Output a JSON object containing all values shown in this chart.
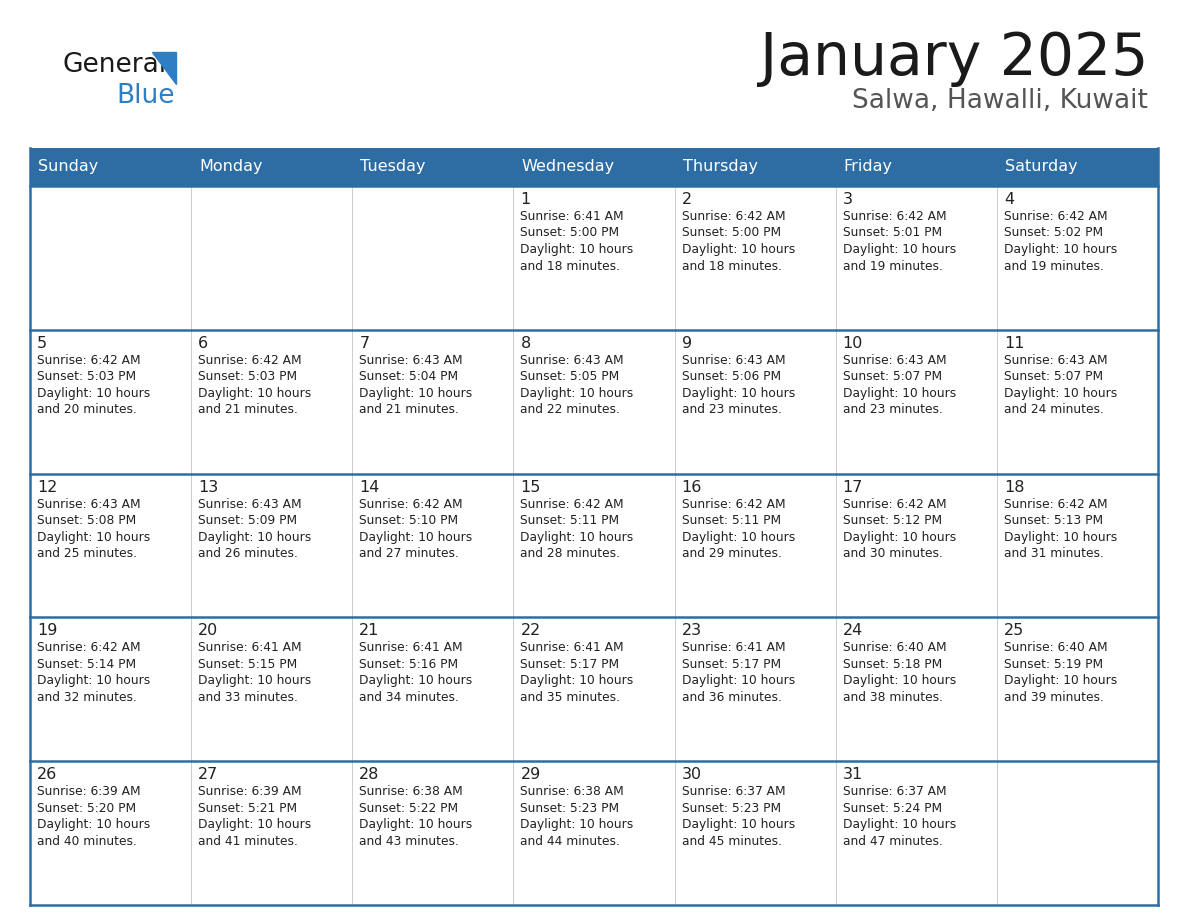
{
  "title": "January 2025",
  "subtitle": "Salwa, Hawalli, Kuwait",
  "header_color": "#2E6DA4",
  "header_text_color": "#FFFFFF",
  "cell_bg_color": "#FFFFFF",
  "cell_alt_bg_color": "#F2F2F2",
  "border_color": "#2E6DA4",
  "grid_color": "#CCCCCC",
  "days_of_week": [
    "Sunday",
    "Monday",
    "Tuesday",
    "Wednesday",
    "Thursday",
    "Friday",
    "Saturday"
  ],
  "weeks": [
    [
      {
        "day": "",
        "sunrise": "",
        "sunset": "",
        "daylight": ""
      },
      {
        "day": "",
        "sunrise": "",
        "sunset": "",
        "daylight": ""
      },
      {
        "day": "",
        "sunrise": "",
        "sunset": "",
        "daylight": ""
      },
      {
        "day": "1",
        "sunrise": "6:41 AM",
        "sunset": "5:00 PM",
        "daylight": "10 hours and 18 minutes."
      },
      {
        "day": "2",
        "sunrise": "6:42 AM",
        "sunset": "5:00 PM",
        "daylight": "10 hours and 18 minutes."
      },
      {
        "day": "3",
        "sunrise": "6:42 AM",
        "sunset": "5:01 PM",
        "daylight": "10 hours and 19 minutes."
      },
      {
        "day": "4",
        "sunrise": "6:42 AM",
        "sunset": "5:02 PM",
        "daylight": "10 hours and 19 minutes."
      }
    ],
    [
      {
        "day": "5",
        "sunrise": "6:42 AM",
        "sunset": "5:03 PM",
        "daylight": "10 hours and 20 minutes."
      },
      {
        "day": "6",
        "sunrise": "6:42 AM",
        "sunset": "5:03 PM",
        "daylight": "10 hours and 21 minutes."
      },
      {
        "day": "7",
        "sunrise": "6:43 AM",
        "sunset": "5:04 PM",
        "daylight": "10 hours and 21 minutes."
      },
      {
        "day": "8",
        "sunrise": "6:43 AM",
        "sunset": "5:05 PM",
        "daylight": "10 hours and 22 minutes."
      },
      {
        "day": "9",
        "sunrise": "6:43 AM",
        "sunset": "5:06 PM",
        "daylight": "10 hours and 23 minutes."
      },
      {
        "day": "10",
        "sunrise": "6:43 AM",
        "sunset": "5:07 PM",
        "daylight": "10 hours and 23 minutes."
      },
      {
        "day": "11",
        "sunrise": "6:43 AM",
        "sunset": "5:07 PM",
        "daylight": "10 hours and 24 minutes."
      }
    ],
    [
      {
        "day": "12",
        "sunrise": "6:43 AM",
        "sunset": "5:08 PM",
        "daylight": "10 hours and 25 minutes."
      },
      {
        "day": "13",
        "sunrise": "6:43 AM",
        "sunset": "5:09 PM",
        "daylight": "10 hours and 26 minutes."
      },
      {
        "day": "14",
        "sunrise": "6:42 AM",
        "sunset": "5:10 PM",
        "daylight": "10 hours and 27 minutes."
      },
      {
        "day": "15",
        "sunrise": "6:42 AM",
        "sunset": "5:11 PM",
        "daylight": "10 hours and 28 minutes."
      },
      {
        "day": "16",
        "sunrise": "6:42 AM",
        "sunset": "5:11 PM",
        "daylight": "10 hours and 29 minutes."
      },
      {
        "day": "17",
        "sunrise": "6:42 AM",
        "sunset": "5:12 PM",
        "daylight": "10 hours and 30 minutes."
      },
      {
        "day": "18",
        "sunrise": "6:42 AM",
        "sunset": "5:13 PM",
        "daylight": "10 hours and 31 minutes."
      }
    ],
    [
      {
        "day": "19",
        "sunrise": "6:42 AM",
        "sunset": "5:14 PM",
        "daylight": "10 hours and 32 minutes."
      },
      {
        "day": "20",
        "sunrise": "6:41 AM",
        "sunset": "5:15 PM",
        "daylight": "10 hours and 33 minutes."
      },
      {
        "day": "21",
        "sunrise": "6:41 AM",
        "sunset": "5:16 PM",
        "daylight": "10 hours and 34 minutes."
      },
      {
        "day": "22",
        "sunrise": "6:41 AM",
        "sunset": "5:17 PM",
        "daylight": "10 hours and 35 minutes."
      },
      {
        "day": "23",
        "sunrise": "6:41 AM",
        "sunset": "5:17 PM",
        "daylight": "10 hours and 36 minutes."
      },
      {
        "day": "24",
        "sunrise": "6:40 AM",
        "sunset": "5:18 PM",
        "daylight": "10 hours and 38 minutes."
      },
      {
        "day": "25",
        "sunrise": "6:40 AM",
        "sunset": "5:19 PM",
        "daylight": "10 hours and 39 minutes."
      }
    ],
    [
      {
        "day": "26",
        "sunrise": "6:39 AM",
        "sunset": "5:20 PM",
        "daylight": "10 hours and 40 minutes."
      },
      {
        "day": "27",
        "sunrise": "6:39 AM",
        "sunset": "5:21 PM",
        "daylight": "10 hours and 41 minutes."
      },
      {
        "day": "28",
        "sunrise": "6:38 AM",
        "sunset": "5:22 PM",
        "daylight": "10 hours and 43 minutes."
      },
      {
        "day": "29",
        "sunrise": "6:38 AM",
        "sunset": "5:23 PM",
        "daylight": "10 hours and 44 minutes."
      },
      {
        "day": "30",
        "sunrise": "6:37 AM",
        "sunset": "5:23 PM",
        "daylight": "10 hours and 45 minutes."
      },
      {
        "day": "31",
        "sunrise": "6:37 AM",
        "sunset": "5:24 PM",
        "daylight": "10 hours and 47 minutes."
      },
      {
        "day": "",
        "sunrise": "",
        "sunset": "",
        "daylight": ""
      }
    ]
  ]
}
